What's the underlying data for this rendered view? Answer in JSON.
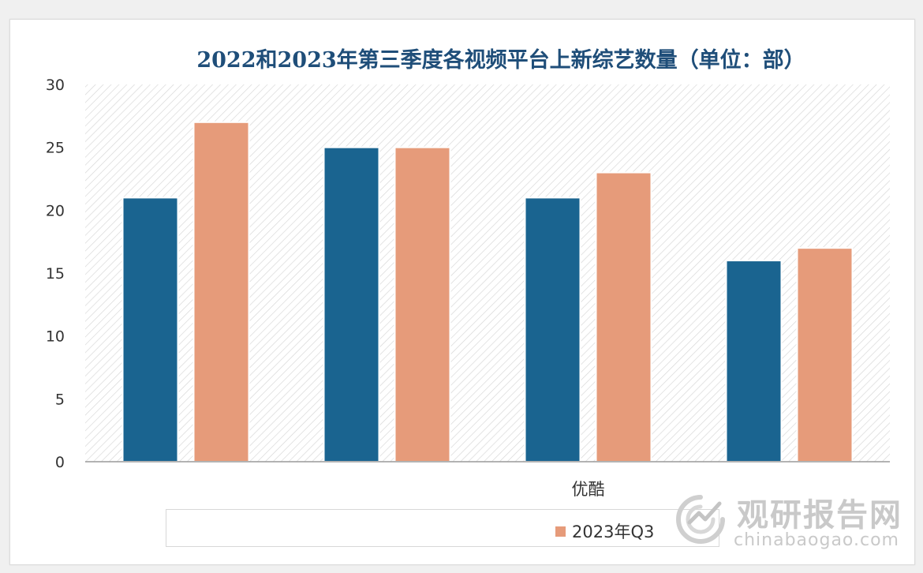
{
  "chart_data": {
    "type": "bar",
    "title": "2022和2023年第三季度各视频平台上新综艺数量（单位：部）",
    "categories": [
      "",
      "",
      "优酷",
      ""
    ],
    "series": [
      {
        "name": "",
        "color": "#1a6490",
        "values": [
          21,
          25,
          21,
          16
        ]
      },
      {
        "name": "2023年Q3",
        "color": "#e69b7a",
        "values": [
          27,
          25,
          23,
          17
        ]
      }
    ],
    "ylim": [
      0,
      30
    ],
    "yticks": [
      "0",
      "5",
      "10",
      "15",
      "20",
      "25",
      "30"
    ],
    "grid": false,
    "plot_background": "diagonal-hatch",
    "legend_position": "bottom"
  },
  "legend": {
    "items": [
      {
        "label": "2023年Q3",
        "color": "#e69b7a"
      }
    ]
  },
  "watermark": {
    "name_cn": "观研报告网",
    "domain": "chinabaogao.com"
  }
}
